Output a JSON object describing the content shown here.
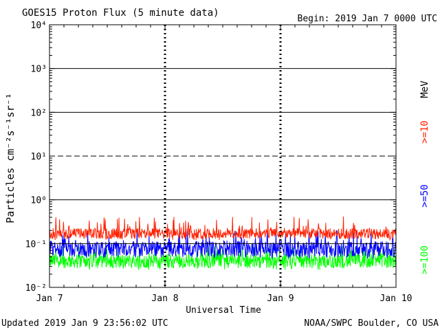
{
  "header": {
    "title": "GOES15 Proton Flux (5 minute data)",
    "begin": "Begin: 2019 Jan 7 0000 UTC"
  },
  "footer": {
    "updated": "Updated 2019 Jan  9 23:56:02 UTC",
    "credit": "NOAA/SWPC Boulder, CO USA"
  },
  "chart_data": {
    "type": "line",
    "title": "GOES15 Proton Flux (5 minute data)",
    "xlabel": "Universal Time",
    "ylabel": "Particles cm⁻²s⁻¹sr⁻¹",
    "yscale": "log",
    "ylim": [
      0.01,
      10000
    ],
    "xlim": [
      "2019-01-07 00:00",
      "2019-01-10 00:00"
    ],
    "x_ticks": [
      "Jan 7",
      "Jan 8",
      "Jan 9",
      "Jan 10"
    ],
    "y_ticks": [
      "10⁻²",
      "10⁻¹",
      "10⁰",
      "10¹",
      "10²",
      "10³",
      "10⁴"
    ],
    "thresholds": [
      {
        "value": 1,
        "style": "solid"
      },
      {
        "value": 10,
        "style": "dashed"
      },
      {
        "value": 100,
        "style": "solid"
      },
      {
        "value": 1000,
        "style": "solid"
      }
    ],
    "reference_line": 0.1,
    "energy_unit": "MeV",
    "series": [
      {
        "name": ">=10",
        "color": "#ff2000",
        "typical": 0.17,
        "low": 0.12,
        "high": 0.42
      },
      {
        "name": ">=50",
        "color": "#0000ff",
        "typical": 0.075,
        "low": 0.045,
        "high": 0.2
      },
      {
        "name": ">=100",
        "color": "#00ff00",
        "typical": 0.04,
        "low": 0.025,
        "high": 0.09
      }
    ]
  }
}
